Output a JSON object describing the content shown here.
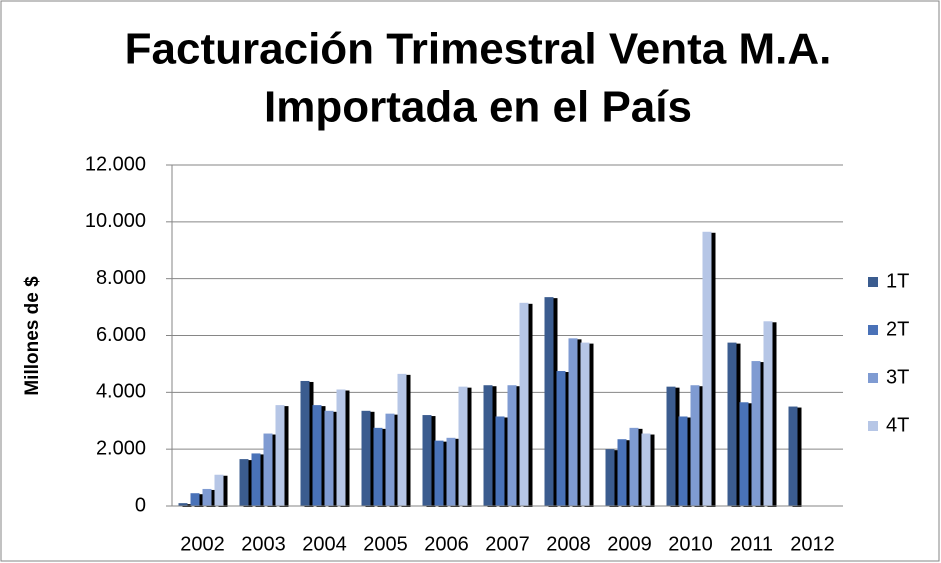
{
  "chart_data": {
    "type": "bar",
    "title": [
      "Facturación Trimestral Venta M.A.",
      "Importada en el País"
    ],
    "ylabel": "Millones de $",
    "categories": [
      "2002",
      "2003",
      "2004",
      "2005",
      "2006",
      "2007",
      "2008",
      "2009",
      "2010",
      "2011",
      "2012"
    ],
    "series": [
      {
        "name": "1T",
        "color": "#3b5c8f",
        "values": [
          100,
          1650,
          4400,
          3350,
          3200,
          4250,
          7350,
          2000,
          4200,
          5750,
          3500
        ]
      },
      {
        "name": "2T",
        "color": "#4a72b8",
        "values": [
          450,
          1850,
          3550,
          2750,
          2300,
          3150,
          4750,
          2350,
          3150,
          3650,
          null
        ]
      },
      {
        "name": "3T",
        "color": "#7f9bd2",
        "values": [
          600,
          2550,
          3350,
          3250,
          2400,
          4250,
          5900,
          2750,
          4250,
          5100,
          null
        ]
      },
      {
        "name": "4T",
        "color": "#b6c6e6",
        "values": [
          1100,
          3550,
          4100,
          4650,
          4200,
          7150,
          5750,
          2550,
          9650,
          6500,
          null
        ]
      }
    ],
    "ylim": [
      0,
      12000
    ],
    "yticks": [
      0,
      {
        "value": 2000,
        "label": "2.000"
      },
      {
        "value": 4000,
        "label": "4.000"
      },
      {
        "value": 6000,
        "label": "6.000"
      },
      {
        "value": 8000,
        "label": "8.000"
      },
      {
        "value": 10000,
        "label": "10.000"
      },
      {
        "value": 12000,
        "label": "12.000"
      }
    ],
    "grid": true,
    "legend": "right"
  }
}
